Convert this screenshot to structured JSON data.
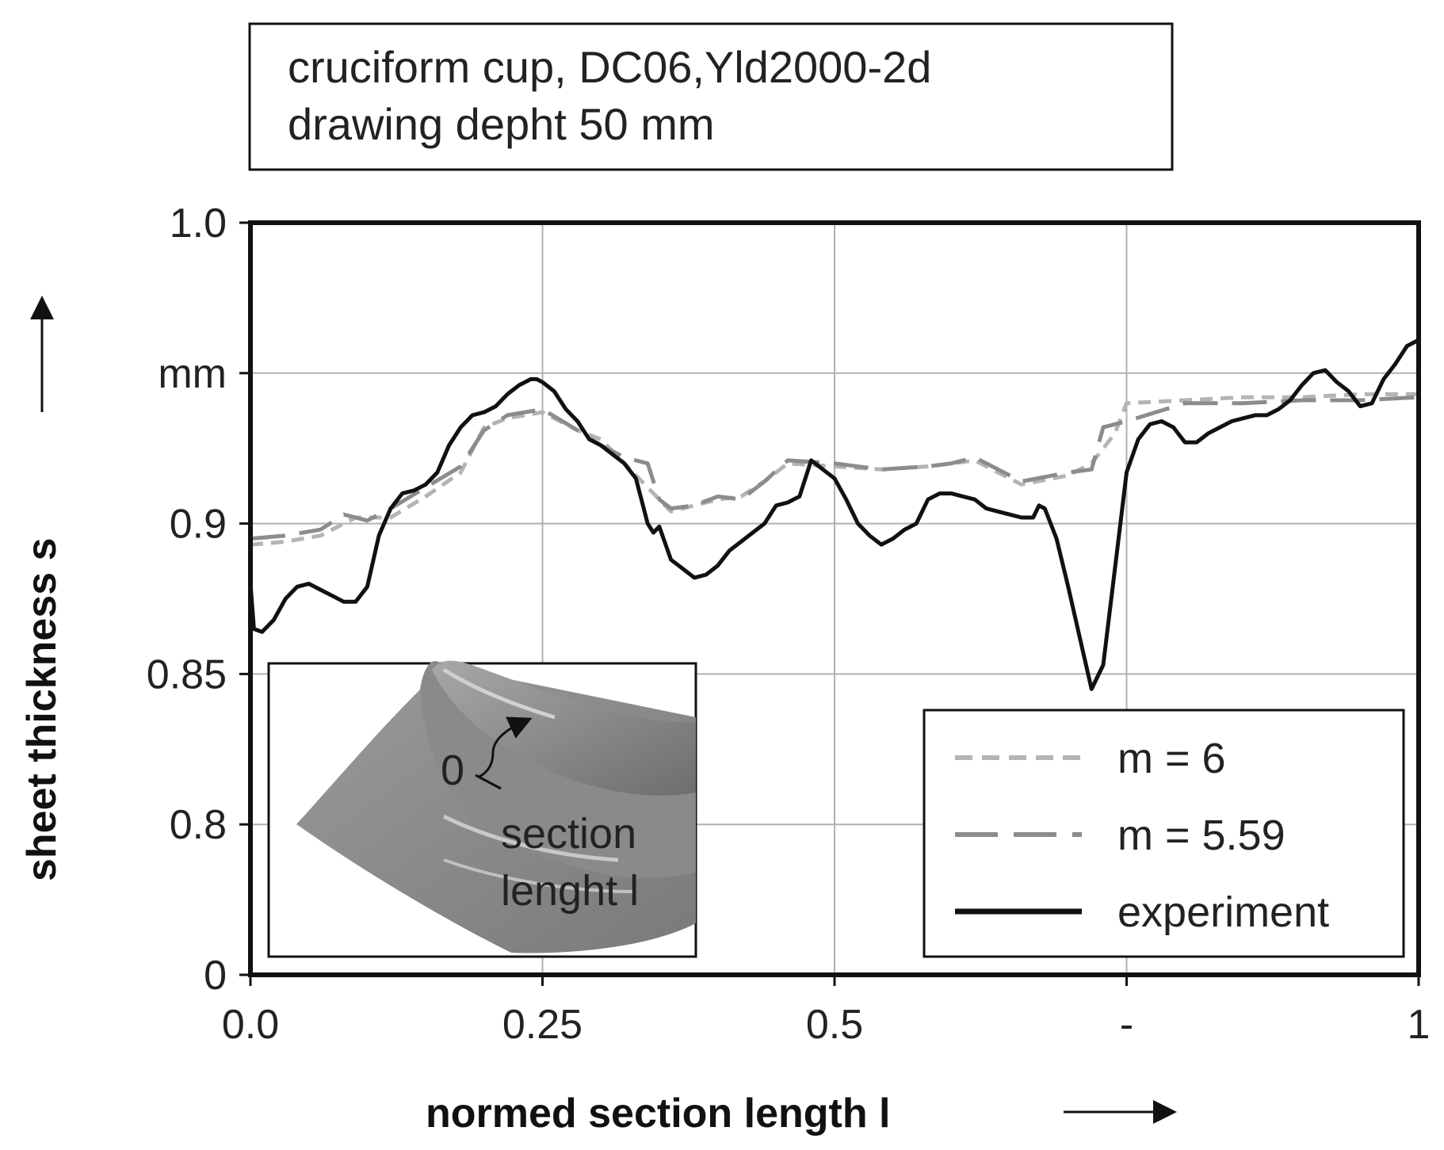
{
  "chart_data": {
    "type": "line",
    "title_lines": [
      "cruciform cup, DC06,Yld2000-2d",
      "drawing depht 50 mm"
    ],
    "xlabel": "normed section length l",
    "ylabel": "sheet thickness s",
    "y_unit": "mm",
    "xlim": [
      0,
      1
    ],
    "ylim": [
      0.75,
      1.0
    ],
    "x_ticks": [
      {
        "value": 0.0,
        "label": "0.0"
      },
      {
        "value": 0.25,
        "label": "0.25"
      },
      {
        "value": 0.5,
        "label": "0.5"
      },
      {
        "value": 0.75,
        "label": "-"
      },
      {
        "value": 1.0,
        "label": "1"
      }
    ],
    "y_ticks": [
      {
        "value": 1.0,
        "label": "1.0"
      },
      {
        "value": 0.95,
        "label": "mm"
      },
      {
        "value": 0.9,
        "label": "0.9"
      },
      {
        "value": 0.85,
        "label": "0.85"
      },
      {
        "value": 0.8,
        "label": "0.8"
      },
      {
        "value": 0.75,
        "label": "0"
      }
    ],
    "grid": true,
    "legend_position": "bottom-right",
    "series": [
      {
        "name": "m = 6",
        "style": "short-dash",
        "color": "#b4b4b4",
        "x": [
          0,
          0.03,
          0.06,
          0.09,
          0.12,
          0.15,
          0.18,
          0.2,
          0.22,
          0.25,
          0.28,
          0.3,
          0.32,
          0.34,
          0.36,
          0.38,
          0.4,
          0.42,
          0.44,
          0.46,
          0.5,
          0.54,
          0.58,
          0.62,
          0.66,
          0.7,
          0.72,
          0.74,
          0.75,
          0.8,
          0.85,
          0.9,
          0.95,
          1.0
        ],
        "values": [
          0.893,
          0.894,
          0.896,
          0.902,
          0.902,
          0.909,
          0.917,
          0.932,
          0.935,
          0.937,
          0.931,
          0.928,
          0.92,
          0.912,
          0.904,
          0.906,
          0.908,
          0.909,
          0.914,
          0.92,
          0.919,
          0.918,
          0.919,
          0.921,
          0.913,
          0.916,
          0.92,
          0.93,
          0.94,
          0.941,
          0.942,
          0.942,
          0.943,
          0.943
        ]
      },
      {
        "name": "m = 5.59",
        "style": "long-dash",
        "color": "#8c8c8c",
        "x": [
          0,
          0.03,
          0.06,
          0.08,
          0.1,
          0.12,
          0.15,
          0.18,
          0.2,
          0.22,
          0.25,
          0.28,
          0.3,
          0.32,
          0.34,
          0.35,
          0.36,
          0.38,
          0.4,
          0.42,
          0.44,
          0.46,
          0.5,
          0.54,
          0.58,
          0.6,
          0.62,
          0.64,
          0.66,
          0.7,
          0.72,
          0.73,
          0.75,
          0.8,
          0.85,
          0.9,
          0.95,
          1.0
        ],
        "values": [
          0.895,
          0.896,
          0.898,
          0.903,
          0.901,
          0.905,
          0.912,
          0.919,
          0.931,
          0.936,
          0.938,
          0.931,
          0.926,
          0.922,
          0.92,
          0.908,
          0.905,
          0.906,
          0.909,
          0.908,
          0.914,
          0.921,
          0.92,
          0.918,
          0.919,
          0.92,
          0.922,
          0.918,
          0.914,
          0.917,
          0.918,
          0.932,
          0.934,
          0.94,
          0.94,
          0.941,
          0.941,
          0.942
        ]
      },
      {
        "name": "experiment",
        "style": "solid",
        "color": "#111111",
        "x": [
          0,
          0.003,
          0.01,
          0.02,
          0.03,
          0.04,
          0.05,
          0.06,
          0.07,
          0.08,
          0.09,
          0.1,
          0.11,
          0.12,
          0.13,
          0.14,
          0.15,
          0.16,
          0.17,
          0.18,
          0.19,
          0.2,
          0.21,
          0.22,
          0.23,
          0.24,
          0.245,
          0.25,
          0.26,
          0.27,
          0.28,
          0.29,
          0.3,
          0.31,
          0.32,
          0.33,
          0.34,
          0.345,
          0.35,
          0.36,
          0.37,
          0.38,
          0.39,
          0.4,
          0.41,
          0.42,
          0.43,
          0.44,
          0.45,
          0.46,
          0.47,
          0.48,
          0.49,
          0.5,
          0.51,
          0.52,
          0.53,
          0.54,
          0.55,
          0.56,
          0.57,
          0.58,
          0.59,
          0.6,
          0.61,
          0.62,
          0.63,
          0.64,
          0.65,
          0.66,
          0.67,
          0.675,
          0.68,
          0.69,
          0.7,
          0.71,
          0.72,
          0.73,
          0.74,
          0.75,
          0.76,
          0.77,
          0.78,
          0.79,
          0.8,
          0.81,
          0.82,
          0.83,
          0.84,
          0.85,
          0.86,
          0.87,
          0.88,
          0.89,
          0.9,
          0.91,
          0.92,
          0.93,
          0.94,
          0.95,
          0.96,
          0.97,
          0.98,
          0.99,
          1.0
        ],
        "values": [
          0.88,
          0.865,
          0.864,
          0.868,
          0.875,
          0.879,
          0.88,
          0.878,
          0.876,
          0.874,
          0.874,
          0.879,
          0.896,
          0.905,
          0.91,
          0.911,
          0.913,
          0.917,
          0.926,
          0.932,
          0.936,
          0.937,
          0.939,
          0.943,
          0.946,
          0.948,
          0.948,
          0.947,
          0.944,
          0.938,
          0.934,
          0.928,
          0.926,
          0.923,
          0.92,
          0.915,
          0.9,
          0.897,
          0.899,
          0.888,
          0.885,
          0.882,
          0.883,
          0.886,
          0.891,
          0.894,
          0.897,
          0.9,
          0.906,
          0.907,
          0.909,
          0.921,
          0.918,
          0.915,
          0.908,
          0.9,
          0.896,
          0.893,
          0.895,
          0.898,
          0.9,
          0.908,
          0.91,
          0.91,
          0.909,
          0.908,
          0.905,
          0.904,
          0.903,
          0.902,
          0.902,
          0.906,
          0.905,
          0.895,
          0.879,
          0.862,
          0.845,
          0.853,
          0.885,
          0.917,
          0.928,
          0.933,
          0.934,
          0.932,
          0.927,
          0.927,
          0.93,
          0.932,
          0.934,
          0.935,
          0.936,
          0.936,
          0.938,
          0.941,
          0.946,
          0.95,
          0.951,
          0.947,
          0.944,
          0.939,
          0.94,
          0.948,
          0.953,
          0.959,
          0.961
        ]
      }
    ],
    "inset": {
      "start_label": "0",
      "caption_lines": [
        "section",
        "lenght l"
      ]
    }
  }
}
